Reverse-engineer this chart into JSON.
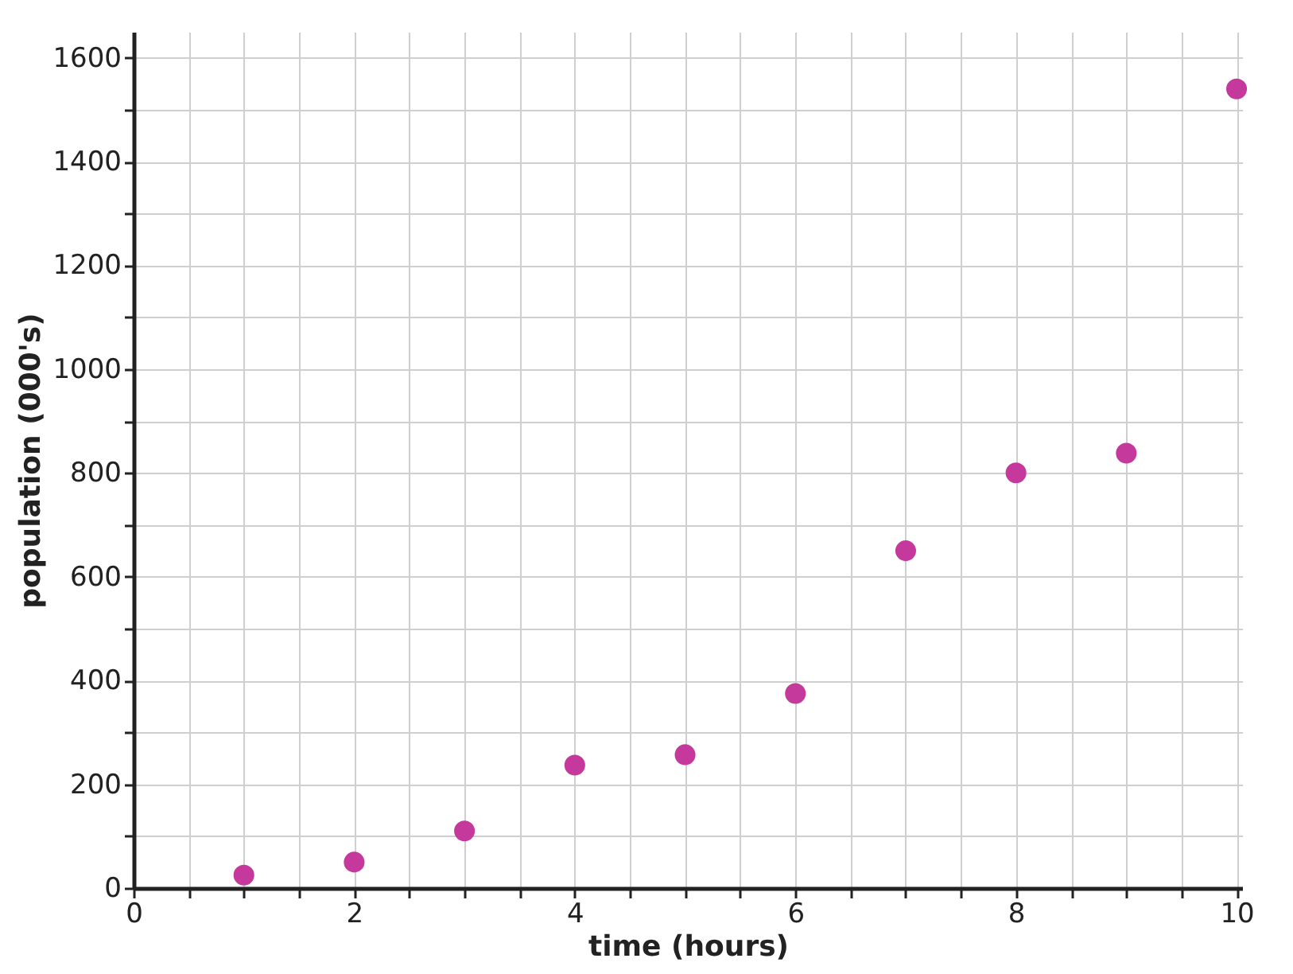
{
  "chart_data": {
    "type": "scatter",
    "xlabel": "time (hours)",
    "ylabel": "population (000's)",
    "x": [
      1,
      2,
      3,
      4,
      5,
      6,
      7,
      8,
      9,
      10
    ],
    "series": [
      {
        "color": "#c4399b",
        "values": [
          25,
          50,
          110,
          237,
          257,
          375,
          650,
          800,
          838,
          1540
        ]
      }
    ],
    "xlim": [
      0,
      10.05
    ],
    "ylim": [
      0,
      1650
    ],
    "xticks": [
      0,
      {
        "value": 0.5,
        "label": null
      },
      {
        "value": 1,
        "label": null
      },
      {
        "value": 1.5,
        "label": null
      },
      2,
      {
        "value": 2.5,
        "label": null
      },
      {
        "value": 3,
        "label": null
      },
      {
        "value": 3.5,
        "label": null
      },
      4,
      {
        "value": 4.5,
        "label": null
      },
      {
        "value": 5,
        "label": null
      },
      {
        "value": 5.5,
        "label": null
      },
      6,
      {
        "value": 6.5,
        "label": null
      },
      {
        "value": 7,
        "label": null
      },
      {
        "value": 7.5,
        "label": null
      },
      8,
      {
        "value": 8.5,
        "label": null
      },
      {
        "value": 9,
        "label": null
      },
      {
        "value": 9.5,
        "label": null
      },
      10
    ],
    "yticks": [
      0,
      {
        "value": 100,
        "label": null
      },
      200,
      {
        "value": 300,
        "label": null
      },
      400,
      {
        "value": 500,
        "label": null
      },
      600,
      {
        "value": 700,
        "label": null
      },
      800,
      {
        "value": 900,
        "label": null
      },
      1000,
      {
        "value": 1100,
        "label": null
      },
      1200,
      {
        "value": 1300,
        "label": null
      },
      1400,
      {
        "value": 1500,
        "label": null
      },
      1600
    ],
    "grid": true,
    "marker": "circle"
  }
}
